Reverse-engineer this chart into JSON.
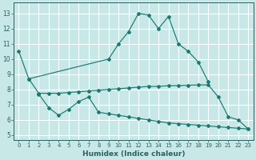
{
  "bg_color": "#c8e8e8",
  "grid_color": "#ffffff",
  "line_color": "#1a7a6e",
  "tick_color": "#2a6060",
  "xlabel": "Humidex (Indice chaleur)",
  "xlim": [
    -0.5,
    23.5
  ],
  "ylim": [
    4.7,
    13.7
  ],
  "yticks": [
    5,
    6,
    7,
    8,
    9,
    10,
    11,
    12,
    13
  ],
  "xticks": [
    0,
    1,
    2,
    3,
    4,
    5,
    6,
    7,
    8,
    9,
    10,
    11,
    12,
    13,
    14,
    15,
    16,
    17,
    18,
    19,
    20,
    21,
    22,
    23
  ],
  "lineA_x": [
    0,
    1,
    9,
    10,
    11,
    12,
    13,
    14,
    15,
    16,
    17,
    18,
    19
  ],
  "lineA_y": [
    10.5,
    8.7,
    10.0,
    11.0,
    11.8,
    13.0,
    12.9,
    12.0,
    12.8,
    11.0,
    10.5,
    9.8,
    8.5
  ],
  "lineB_x": [
    1,
    2,
    3,
    4,
    5,
    6,
    7,
    8,
    9,
    10,
    11,
    12,
    13,
    14,
    15,
    16,
    17,
    18,
    19,
    20,
    21,
    22,
    23
  ],
  "lineB_y": [
    8.7,
    7.75,
    7.75,
    7.75,
    7.8,
    7.85,
    7.9,
    7.95,
    8.0,
    8.05,
    8.1,
    8.15,
    8.2,
    8.2,
    8.25,
    8.25,
    8.28,
    8.3,
    8.3,
    7.5,
    6.2,
    6.0,
    5.4
  ],
  "lineC_x": [
    2,
    3,
    4,
    5,
    6,
    7,
    8,
    9,
    10,
    11,
    12,
    13,
    14,
    15,
    16,
    17,
    18,
    19,
    20,
    21,
    22,
    23
  ],
  "lineC_y": [
    7.7,
    6.8,
    6.3,
    6.7,
    7.2,
    7.5,
    6.5,
    6.4,
    6.3,
    6.2,
    6.1,
    6.0,
    5.9,
    5.8,
    5.75,
    5.7,
    5.65,
    5.6,
    5.55,
    5.5,
    5.45,
    5.4
  ]
}
